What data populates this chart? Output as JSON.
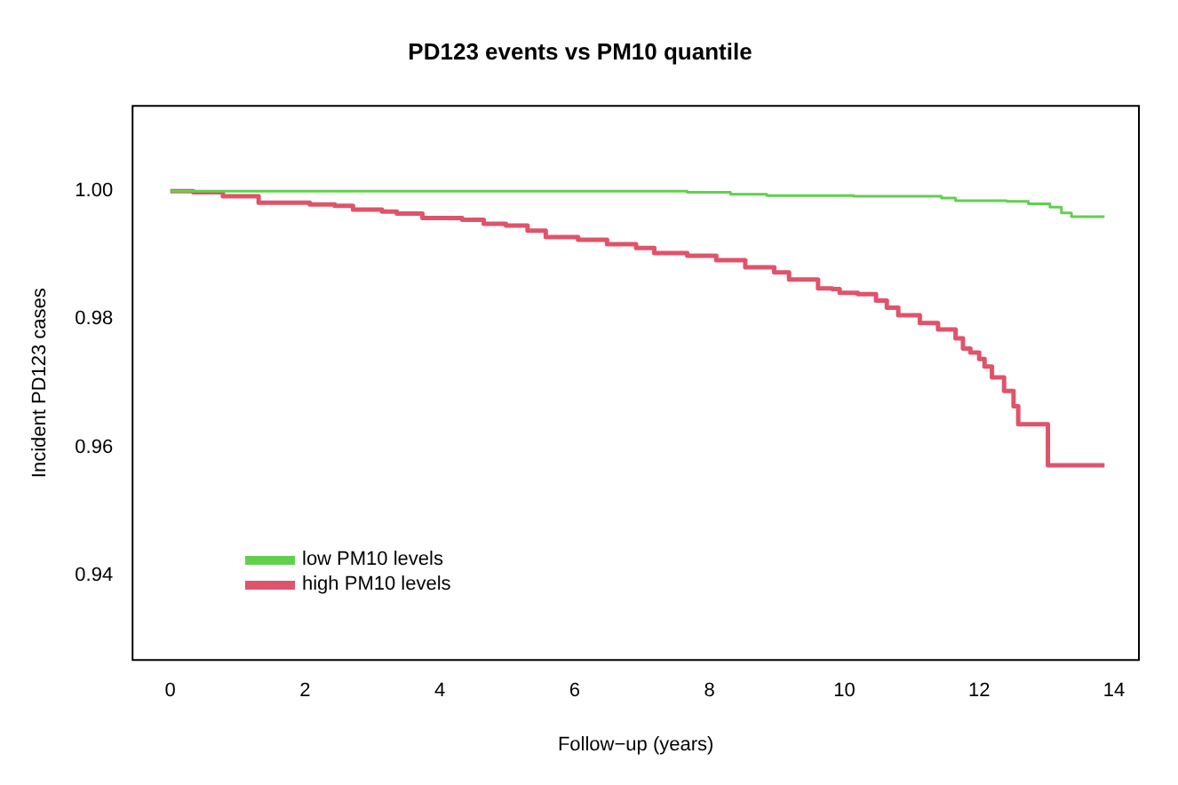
{
  "chart_data": {
    "type": "step",
    "title": "PD123 events vs PM10 quantile",
    "xlabel": "Follow−up (years)",
    "ylabel": "Incident PD123 cases",
    "xlim": [
      -0.56,
      14.37
    ],
    "xticks": [
      0,
      2,
      4,
      6,
      8,
      10,
      12,
      14
    ],
    "ylim": [
      0.9268,
      1.0133
    ],
    "yticks": [
      0.94,
      0.96,
      0.98,
      {
        "value": 1,
        "label": "1.00"
      }
    ],
    "grid": false,
    "legend": "bottom left",
    "marker": "none",
    "line_style": "solid",
    "series": [
      {
        "name": "low PM10 levels",
        "color": "#61d04f",
        "x": [
          0,
          6.8,
          7.67,
          8.31,
          8.85,
          10.14,
          11.44,
          11.65,
          12.41,
          12.73,
          13.05,
          13.22,
          13.37,
          13.86
        ],
        "values": [
          1.0,
          1.0,
          0.9998,
          0.9995,
          0.9993,
          0.9992,
          0.9989,
          0.9985,
          0.9984,
          0.998,
          0.9975,
          0.9966,
          0.996,
          0.996
        ]
      },
      {
        "name": "high PM10 levels",
        "color": "#df536b",
        "x": [
          0,
          0.34,
          0.78,
          1.31,
          2.07,
          2.44,
          2.71,
          3.14,
          3.36,
          3.74,
          4.33,
          4.65,
          4.98,
          5.3,
          5.57,
          6.05,
          6.48,
          6.91,
          7.18,
          7.67,
          8.1,
          8.53,
          8.96,
          9.18,
          9.61,
          9.82,
          9.93,
          10.2,
          10.47,
          10.63,
          10.8,
          11.12,
          11.39,
          11.65,
          11.76,
          11.87,
          12.0,
          12.08,
          12.19,
          12.37,
          12.51,
          12.58,
          13.02,
          13.86
        ],
        "values": [
          1.0,
          0.9998,
          0.9992,
          0.9982,
          0.9979,
          0.9977,
          0.9971,
          0.9968,
          0.9965,
          0.9958,
          0.9955,
          0.9949,
          0.9946,
          0.9938,
          0.9928,
          0.9924,
          0.9917,
          0.9911,
          0.9903,
          0.9899,
          0.9892,
          0.9881,
          0.9873,
          0.9862,
          0.9848,
          0.9847,
          0.9841,
          0.9839,
          0.9829,
          0.9818,
          0.9806,
          0.9794,
          0.9784,
          0.977,
          0.9754,
          0.9748,
          0.9738,
          0.9726,
          0.9709,
          0.9688,
          0.9664,
          0.9636,
          0.9572,
          0.9572
        ]
      }
    ]
  }
}
